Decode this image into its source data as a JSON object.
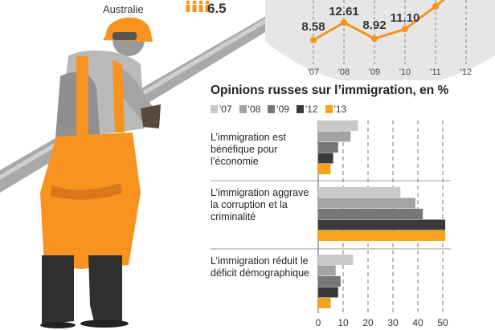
{
  "top_country": {
    "label": "Australie",
    "value": "6.5"
  },
  "colors": {
    "2007": "#c9c9c9",
    "2008": "#a3a3a3",
    "2009": "#777777",
    "2012": "#3a3a3a",
    "2013": "#f7a21b",
    "orange": "#f7931e",
    "worker_grey": "#b9b9b9"
  },
  "line_chart": {
    "type": "line",
    "x": [
      "'07",
      "'08",
      "'09",
      "'10",
      "'11",
      "'12"
    ],
    "visible_values": [
      8.58,
      12.61,
      8.92,
      11.1
    ],
    "labels": [
      "8.58",
      "12.61",
      "8.92",
      "11.10"
    ]
  },
  "chart_data": {
    "type": "bar",
    "orientation": "horizontal",
    "title": "Opinions russes sur l’immigration, en %",
    "legend": [
      "'07",
      "'08",
      "'09",
      "'12",
      "'13"
    ],
    "categories": [
      "L’immigration est bénéfique pour l’économie",
      "L’immigration aggrave la corruption et la criminalité",
      "L’immigration réduit le déficit démographique"
    ],
    "series": [
      {
        "name": "'07",
        "values": [
          16,
          33,
          14
        ]
      },
      {
        "name": "'08",
        "values": [
          13,
          39,
          7
        ]
      },
      {
        "name": "'09",
        "values": [
          8,
          42,
          9
        ]
      },
      {
        "name": "'12",
        "values": [
          6,
          51,
          8
        ]
      },
      {
        "name": "'13",
        "values": [
          5,
          51,
          5
        ]
      }
    ],
    "xticks": [
      "0",
      "10",
      "20",
      "30",
      "40",
      "50"
    ],
    "xlim": [
      0,
      50
    ]
  }
}
